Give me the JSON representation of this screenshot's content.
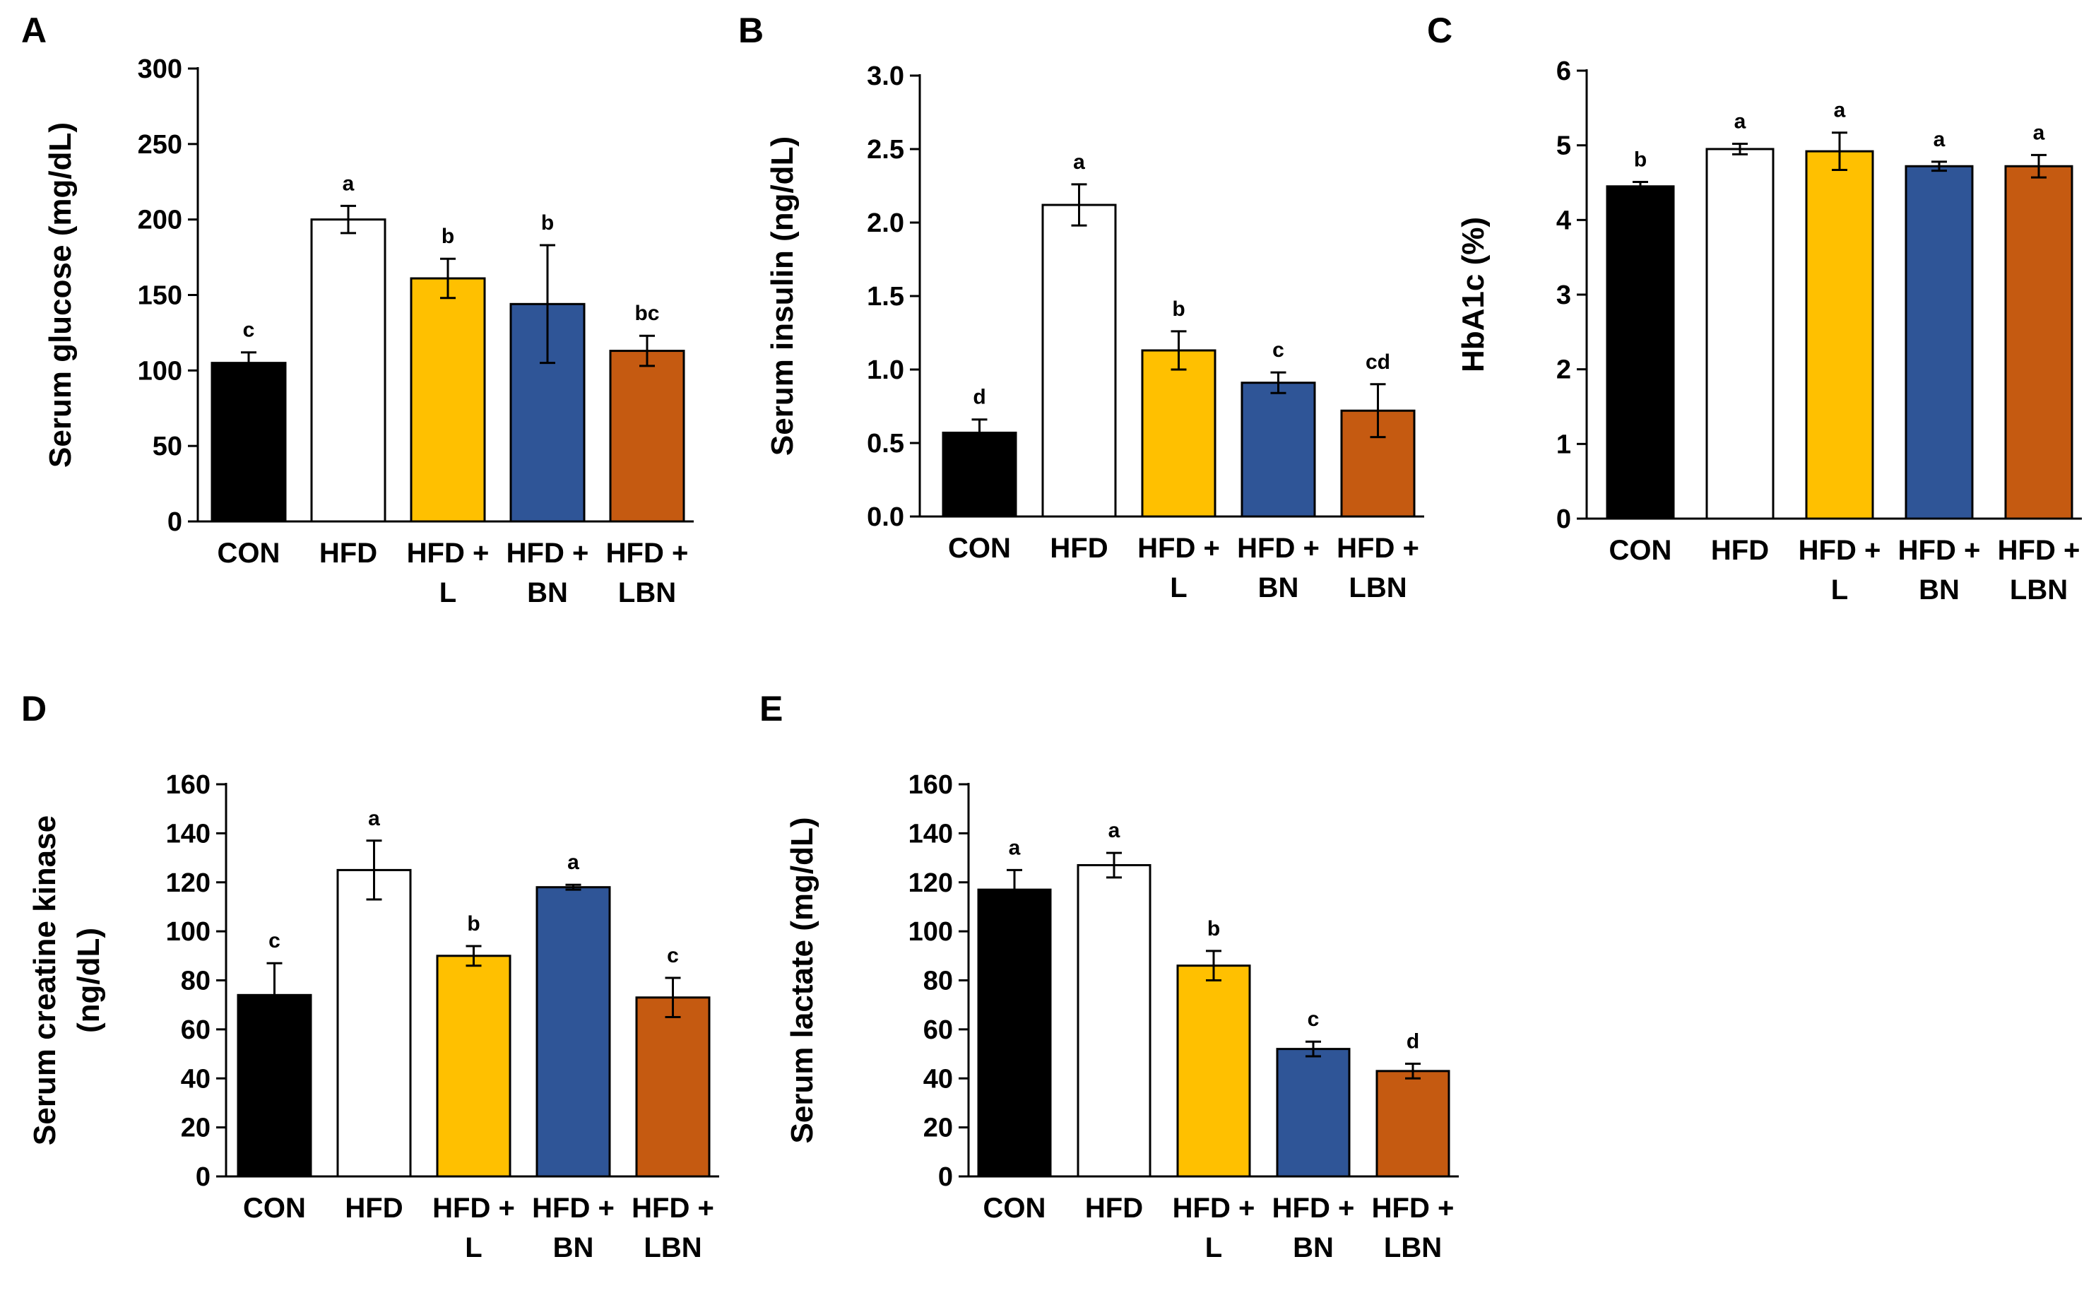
{
  "colors": {
    "CON": "#000000",
    "HFD": "#ffffff",
    "HFD + L": "#ffc000",
    "HFD + BN": "#2f5597",
    "HFD + LBN": "#c55a11"
  },
  "chart_data": [
    {
      "panel": "A",
      "type": "bar",
      "ylabel": "Serum glucose (mg/dL)",
      "categories": [
        "CON",
        "HFD",
        "HFD + L",
        "HFD + BN",
        "HFD + LBN"
      ],
      "category_lines": [
        [
          "CON"
        ],
        [
          "HFD"
        ],
        [
          "HFD +",
          "L"
        ],
        [
          "HFD +",
          "BN"
        ],
        [
          "HFD +",
          "LBN"
        ]
      ],
      "values": [
        105,
        200,
        161,
        144,
        113
      ],
      "errors": [
        7,
        9,
        13,
        39,
        10
      ],
      "letters": [
        "c",
        "a",
        "b",
        "b",
        "bc"
      ],
      "ylim": [
        0,
        300
      ],
      "ticks": [
        "0",
        "50",
        "100",
        "150",
        "200",
        "250",
        "300"
      ]
    },
    {
      "panel": "B",
      "type": "bar",
      "ylabel": "Serum insulin (ng/dL)",
      "categories": [
        "CON",
        "HFD",
        "HFD + L",
        "HFD + BN",
        "HFD + LBN"
      ],
      "category_lines": [
        [
          "CON"
        ],
        [
          "HFD"
        ],
        [
          "HFD +",
          "L"
        ],
        [
          "HFD +",
          "BN"
        ],
        [
          "HFD +",
          "LBN"
        ]
      ],
      "values": [
        0.57,
        2.12,
        1.13,
        0.91,
        0.72
      ],
      "errors": [
        0.09,
        0.14,
        0.13,
        0.07,
        0.18
      ],
      "letters": [
        "d",
        "a",
        "b",
        "c",
        "cd"
      ],
      "ylim": [
        0,
        3.0
      ],
      "ticks": [
        "0.0",
        "0.5",
        "1.0",
        "1.5",
        "2.0",
        "2.5",
        "3.0"
      ]
    },
    {
      "panel": "C",
      "type": "bar",
      "ylabel": "HbA1c (%)",
      "categories": [
        "CON",
        "HFD",
        "HFD + L",
        "HFD + BN",
        "HFD + LBN"
      ],
      "category_lines": [
        [
          "CON"
        ],
        [
          "HFD"
        ],
        [
          "HFD +",
          "L"
        ],
        [
          "HFD +",
          "BN"
        ],
        [
          "HFD +",
          "LBN"
        ]
      ],
      "values": [
        4.45,
        4.95,
        4.92,
        4.72,
        4.72
      ],
      "errors": [
        0.06,
        0.07,
        0.25,
        0.06,
        0.15
      ],
      "letters": [
        "b",
        "a",
        "a",
        "a",
        "a"
      ],
      "ylim": [
        0,
        6
      ],
      "ticks": [
        "0",
        "1",
        "2",
        "3",
        "4",
        "5",
        "6"
      ]
    },
    {
      "panel": "D",
      "type": "bar",
      "ylabel": "Serum creatine kinase",
      "ylabel2": "(ng/dL)",
      "categories": [
        "CON",
        "HFD",
        "HFD + L",
        "HFD + BN",
        "HFD + LBN"
      ],
      "category_lines": [
        [
          "CON"
        ],
        [
          "HFD"
        ],
        [
          "HFD +",
          "L"
        ],
        [
          "HFD +",
          "BN"
        ],
        [
          "HFD +",
          "LBN"
        ]
      ],
      "values": [
        74,
        125,
        90,
        118,
        73
      ],
      "errors": [
        13,
        12,
        4,
        1,
        8
      ],
      "letters": [
        "c",
        "a",
        "b",
        "a",
        "c"
      ],
      "ylim": [
        0,
        160
      ],
      "ticks": [
        "0",
        "20",
        "40",
        "60",
        "80",
        "100",
        "120",
        "140",
        "160"
      ]
    },
    {
      "panel": "E",
      "type": "bar",
      "ylabel": "Serum lactate (mg/dL)",
      "categories": [
        "CON",
        "HFD",
        "HFD + L",
        "HFD + BN",
        "HFD + LBN"
      ],
      "category_lines": [
        [
          "CON"
        ],
        [
          "HFD"
        ],
        [
          "HFD +",
          "L"
        ],
        [
          "HFD +",
          "BN"
        ],
        [
          "HFD +",
          "LBN"
        ]
      ],
      "values": [
        117,
        127,
        86,
        52,
        43
      ],
      "errors": [
        8,
        5,
        6,
        3,
        3
      ],
      "letters": [
        "a",
        "a",
        "b",
        "c",
        "d"
      ],
      "ylim": [
        0,
        160
      ],
      "ticks": [
        "0",
        "20",
        "40",
        "60",
        "80",
        "100",
        "120",
        "140",
        "160"
      ]
    }
  ]
}
